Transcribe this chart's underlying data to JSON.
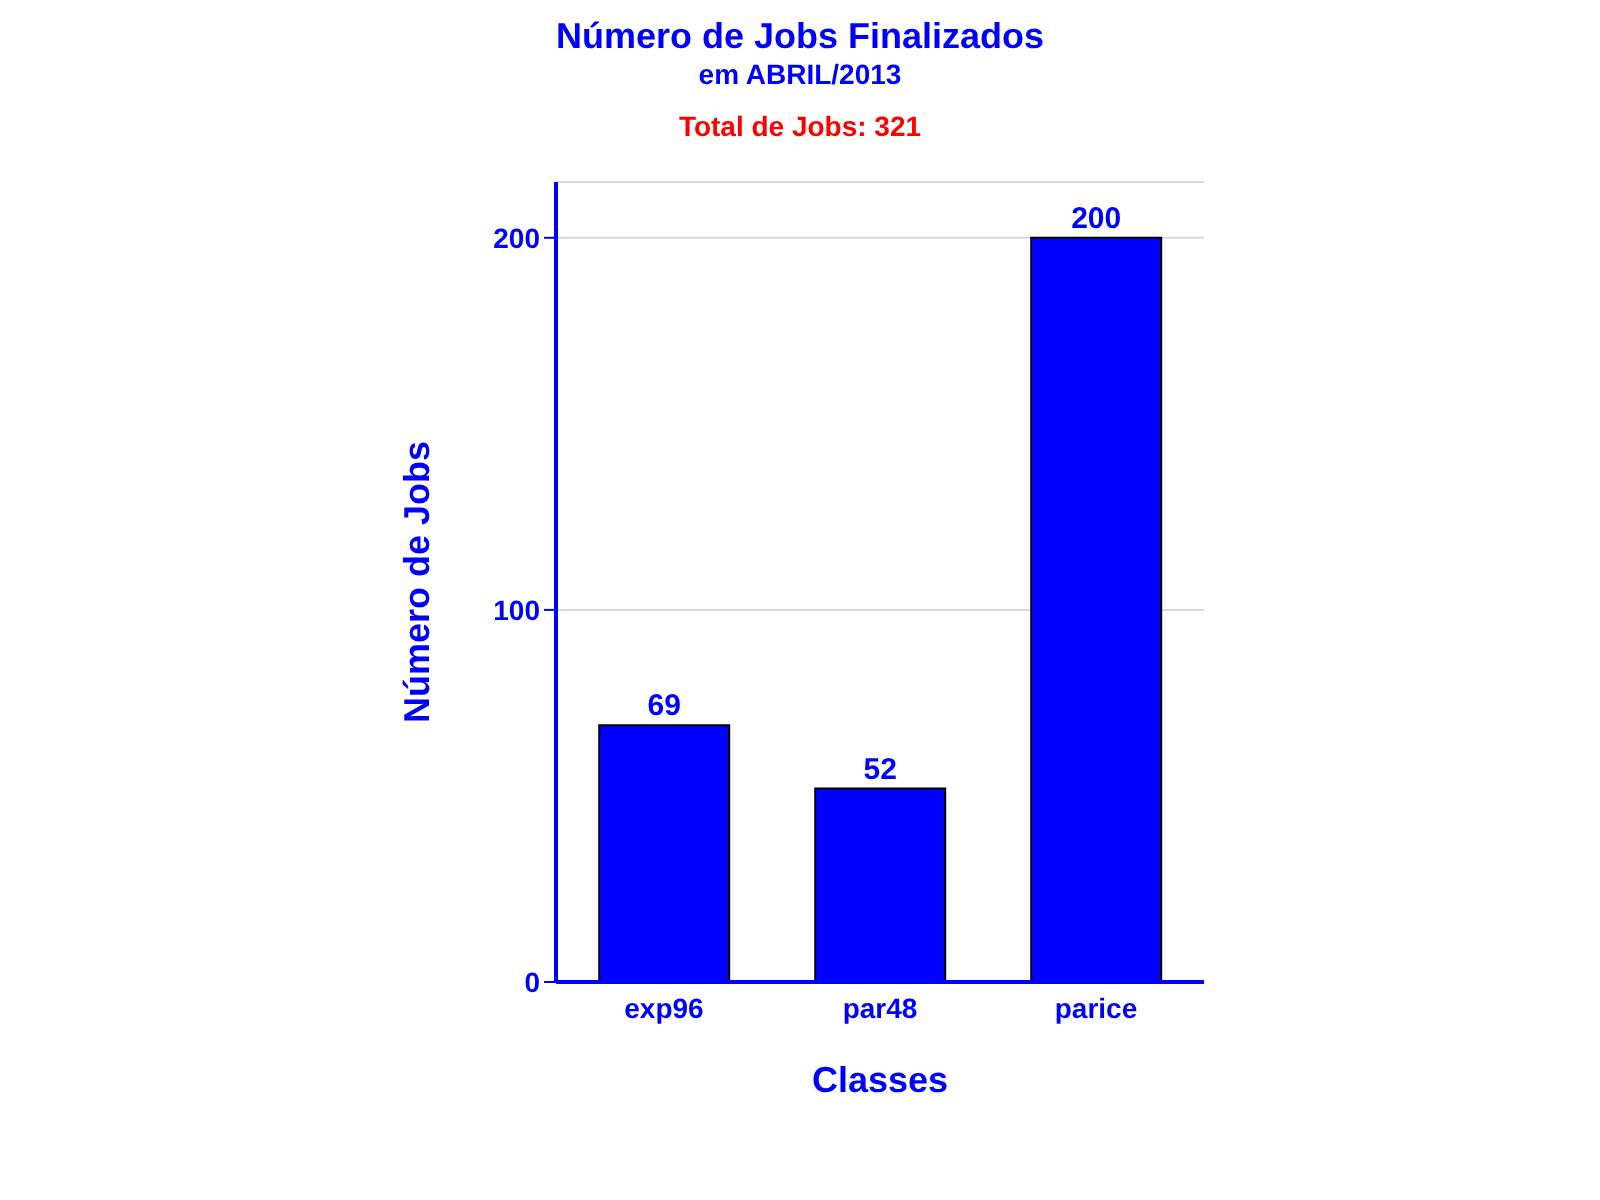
{
  "chart_data": {
    "type": "bar",
    "title": "Número de Jobs Finalizados",
    "subtitle": "em ABRIL/2013",
    "annotations": [
      "Total de Jobs: 321"
    ],
    "xlabel": "Classes",
    "ylabel": "Número de Jobs",
    "categories": [
      "exp96",
      "par48",
      "parice"
    ],
    "values": [
      69,
      52,
      200
    ],
    "color": "#0000ff",
    "ylim": [
      0,
      215
    ],
    "yticks": [
      0,
      100,
      200
    ],
    "grid": "y",
    "data_labels": true
  }
}
